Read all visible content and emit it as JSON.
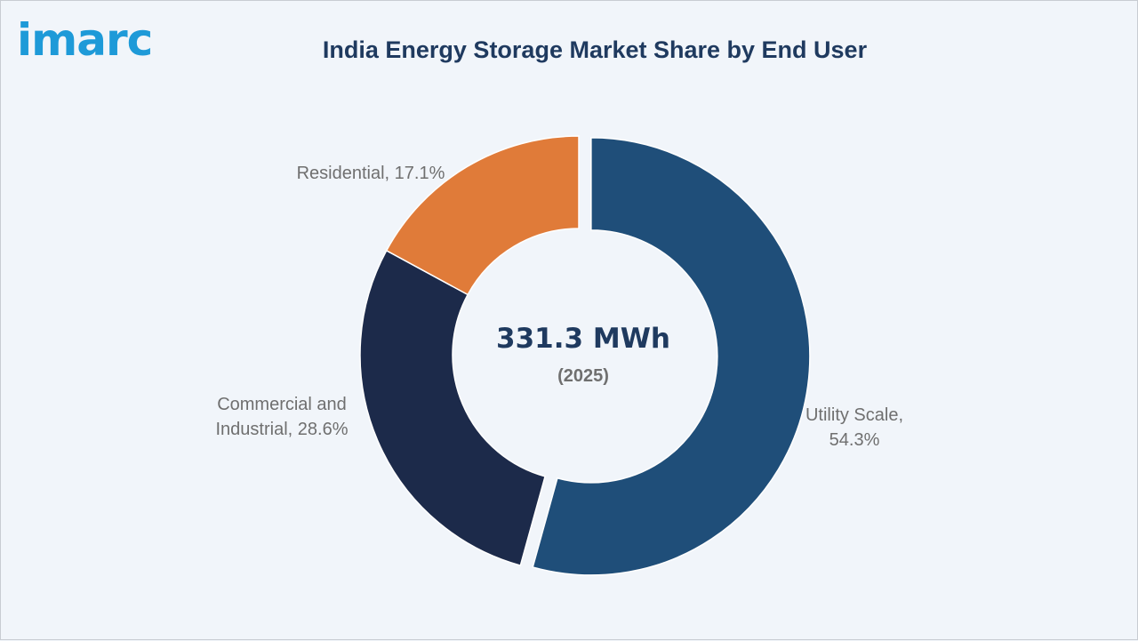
{
  "brand": {
    "logo_text": "imarc",
    "color": "#1e9ad8"
  },
  "chart_data": {
    "type": "pie",
    "variant": "donut",
    "title": "India Energy Storage Market Share by End User",
    "center_value": "331.3 MWh",
    "center_subtitle": "(2025)",
    "categories": [
      "Utility Scale",
      "Commercial and Industrial",
      "Residential"
    ],
    "values": [
      54.3,
      28.6,
      17.1
    ],
    "unit": "%",
    "colors": [
      "#1f4e79",
      "#1c2a4a",
      "#e07b39"
    ],
    "labels": [
      {
        "lines": [
          "Utility Scale,",
          "54.3%"
        ]
      },
      {
        "lines": [
          "Commercial and",
          "Industrial, 28.6%"
        ]
      },
      {
        "lines": [
          "Residential, 17.1%"
        ]
      }
    ],
    "exploded": "Utility Scale"
  }
}
